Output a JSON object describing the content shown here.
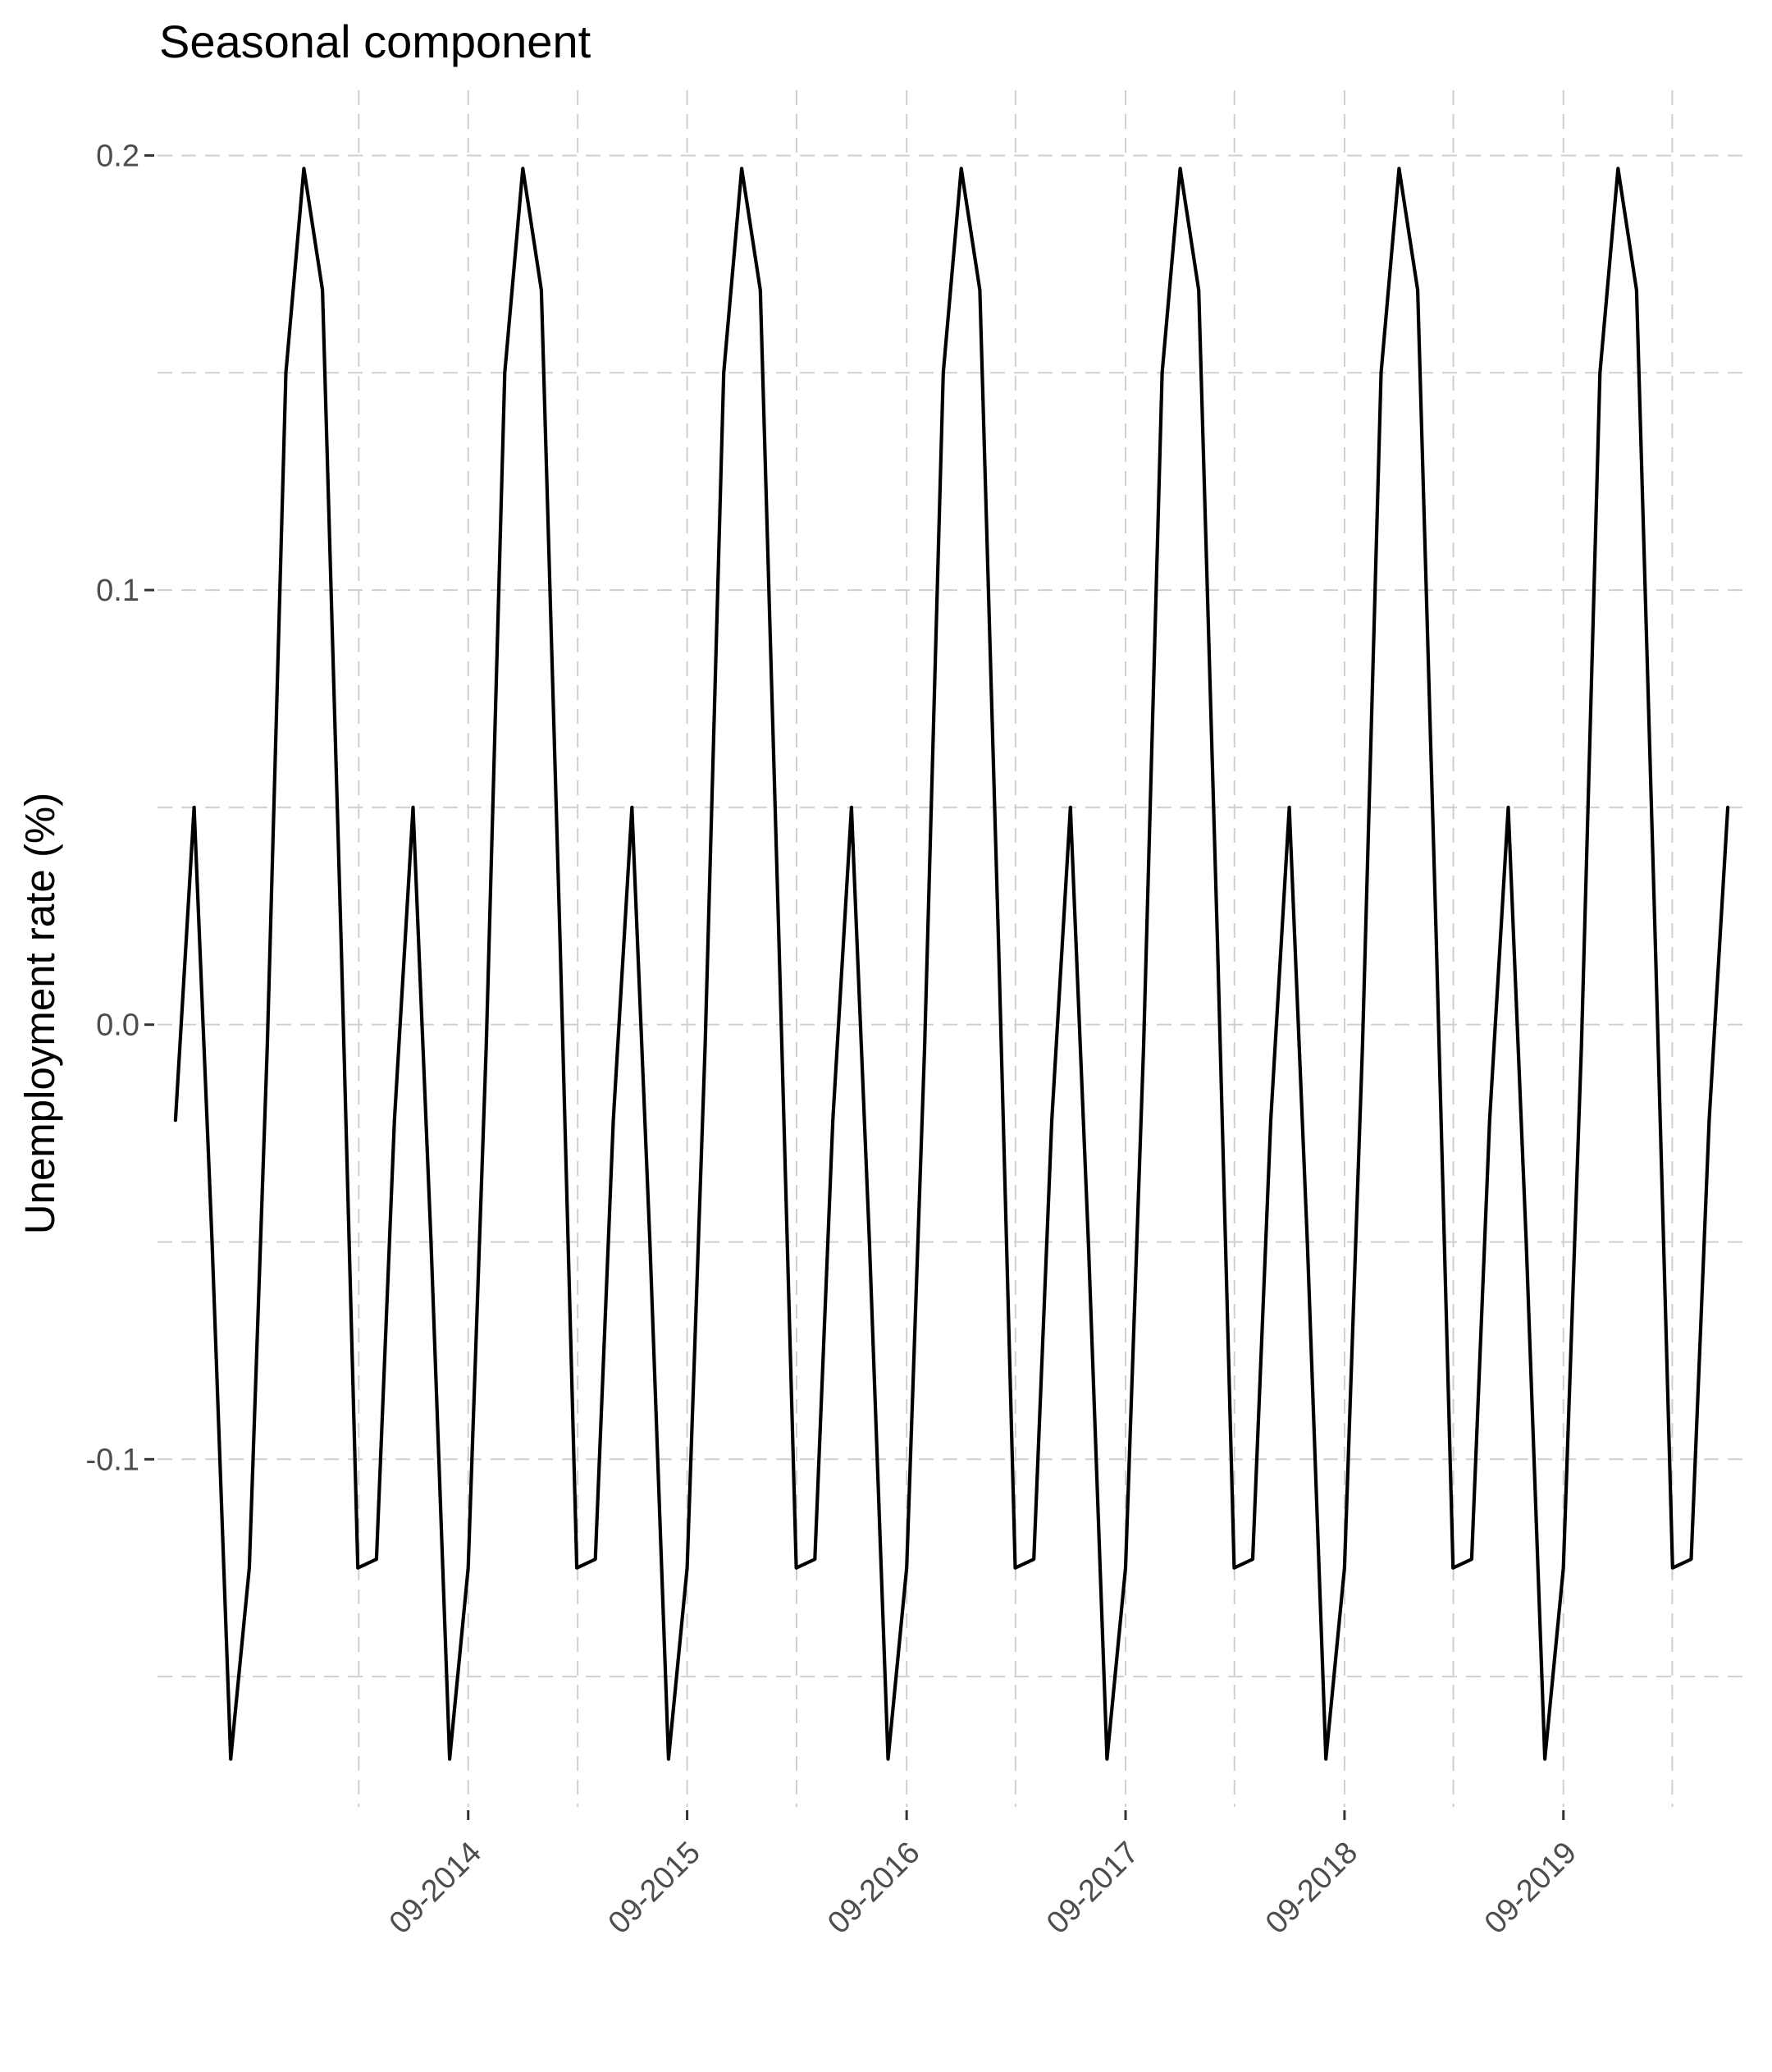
{
  "chart_data": {
    "type": "line",
    "title": "Seasonal component",
    "xlabel": "",
    "ylabel": "Unemployment rate (%)",
    "x_tick_labels": [
      "09-2014",
      "09-2015",
      "09-2016",
      "09-2017",
      "09-2018",
      "09-2019"
    ],
    "y_tick_labels": [
      "0.2",
      "0.1",
      "0.0",
      "-0.1"
    ],
    "y_ticks": [
      0.2,
      0.1,
      0.0,
      -0.1
    ],
    "ylim": [
      -0.18,
      0.215
    ],
    "x_range": [
      "2013-04-01",
      "2020-07-01"
    ],
    "grid": true,
    "legend": "none",
    "series": [
      {
        "color": "#000000",
        "points": [
          [
            "2013-05-01",
            -0.022
          ],
          [
            "2013-06-01",
            0.05
          ],
          [
            "2013-07-01",
            -0.05
          ],
          [
            "2013-08-01",
            -0.169
          ],
          [
            "2013-09-01",
            -0.125
          ],
          [
            "2013-10-01",
            -0.005
          ],
          [
            "2013-11-01",
            0.15
          ],
          [
            "2013-12-01",
            0.197
          ],
          [
            "2014-01-01",
            0.169
          ],
          [
            "2014-02-01",
            0.02
          ],
          [
            "2014-03-01",
            -0.125
          ],
          [
            "2014-04-01",
            -0.123
          ],
          [
            "2014-05-01",
            -0.022
          ],
          [
            "2014-06-01",
            0.05
          ],
          [
            "2014-07-01",
            -0.05
          ],
          [
            "2014-08-01",
            -0.169
          ],
          [
            "2014-09-01",
            -0.125
          ],
          [
            "2014-10-01",
            -0.005
          ],
          [
            "2014-11-01",
            0.15
          ],
          [
            "2014-12-01",
            0.197
          ],
          [
            "2015-01-01",
            0.169
          ],
          [
            "2015-02-01",
            0.02
          ],
          [
            "2015-03-01",
            -0.125
          ],
          [
            "2015-04-01",
            -0.123
          ],
          [
            "2015-05-01",
            -0.022
          ],
          [
            "2015-06-01",
            0.05
          ],
          [
            "2015-07-01",
            -0.05
          ],
          [
            "2015-08-01",
            -0.169
          ],
          [
            "2015-09-01",
            -0.125
          ],
          [
            "2015-10-01",
            -0.005
          ],
          [
            "2015-11-01",
            0.15
          ],
          [
            "2015-12-01",
            0.197
          ],
          [
            "2016-01-01",
            0.169
          ],
          [
            "2016-02-01",
            0.02
          ],
          [
            "2016-03-01",
            -0.125
          ],
          [
            "2016-04-01",
            -0.123
          ],
          [
            "2016-05-01",
            -0.022
          ],
          [
            "2016-06-01",
            0.05
          ],
          [
            "2016-07-01",
            -0.05
          ],
          [
            "2016-08-01",
            -0.169
          ],
          [
            "2016-09-01",
            -0.125
          ],
          [
            "2016-10-01",
            -0.005
          ],
          [
            "2016-11-01",
            0.15
          ],
          [
            "2016-12-01",
            0.197
          ],
          [
            "2017-01-01",
            0.169
          ],
          [
            "2017-02-01",
            0.02
          ],
          [
            "2017-03-01",
            -0.125
          ],
          [
            "2017-04-01",
            -0.123
          ],
          [
            "2017-05-01",
            -0.022
          ],
          [
            "2017-06-01",
            0.05
          ],
          [
            "2017-07-01",
            -0.05
          ],
          [
            "2017-08-01",
            -0.169
          ],
          [
            "2017-09-01",
            -0.125
          ],
          [
            "2017-10-01",
            -0.005
          ],
          [
            "2017-11-01",
            0.15
          ],
          [
            "2017-12-01",
            0.197
          ],
          [
            "2018-01-01",
            0.169
          ],
          [
            "2018-02-01",
            0.02
          ],
          [
            "2018-03-01",
            -0.125
          ],
          [
            "2018-04-01",
            -0.123
          ],
          [
            "2018-05-01",
            -0.022
          ],
          [
            "2018-06-01",
            0.05
          ],
          [
            "2018-07-01",
            -0.05
          ],
          [
            "2018-08-01",
            -0.169
          ],
          [
            "2018-09-01",
            -0.125
          ],
          [
            "2018-10-01",
            -0.005
          ],
          [
            "2018-11-01",
            0.15
          ],
          [
            "2018-12-01",
            0.197
          ],
          [
            "2019-01-01",
            0.169
          ],
          [
            "2019-02-01",
            0.02
          ],
          [
            "2019-03-01",
            -0.125
          ],
          [
            "2019-04-01",
            -0.123
          ],
          [
            "2019-05-01",
            -0.022
          ],
          [
            "2019-06-01",
            0.05
          ],
          [
            "2019-07-01",
            -0.05
          ],
          [
            "2019-08-01",
            -0.169
          ],
          [
            "2019-09-01",
            -0.125
          ],
          [
            "2019-10-01",
            -0.005
          ],
          [
            "2019-11-01",
            0.15
          ],
          [
            "2019-12-01",
            0.197
          ],
          [
            "2020-01-01",
            0.169
          ],
          [
            "2020-02-01",
            0.02
          ],
          [
            "2020-03-01",
            -0.125
          ],
          [
            "2020-04-01",
            -0.123
          ],
          [
            "2020-05-01",
            -0.022
          ],
          [
            "2020-06-01",
            0.05
          ]
        ]
      }
    ]
  }
}
